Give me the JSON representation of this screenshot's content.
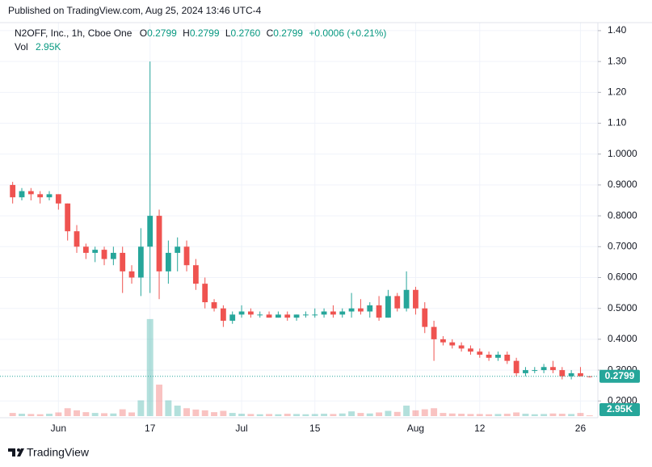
{
  "header": {
    "published": "Published on TradingView.com, Aug 25, 2024 13:46 UTC-4"
  },
  "legend": {
    "symbol": "N2OFF, Inc., 1h, Cboe One",
    "o_key": "O",
    "o": "0.2799",
    "h_key": "H",
    "h": "0.2799",
    "l_key": "L",
    "l": "0.2760",
    "c_key": "C",
    "c": "0.2799",
    "change": "+0.0006 (+0.21%)",
    "vol_key": "Vol",
    "vol": "2.95K"
  },
  "footer": {
    "brand": "TradingView"
  },
  "chart_data": {
    "type": "candlestick",
    "categories": [
      null,
      null,
      null,
      null,
      null,
      "Jun",
      null,
      null,
      null,
      null,
      null,
      null,
      null,
      null,
      null,
      "17",
      null,
      null,
      null,
      null,
      null,
      null,
      null,
      null,
      null,
      "Jul",
      null,
      null,
      null,
      null,
      null,
      null,
      null,
      "15",
      null,
      null,
      null,
      null,
      null,
      null,
      null,
      null,
      null,
      null,
      "Aug",
      null,
      null,
      null,
      null,
      null,
      null,
      "12",
      null,
      null,
      null,
      null,
      null,
      null,
      null,
      null,
      null,
      null,
      "26",
      null
    ],
    "open": [
      0.9,
      0.86,
      0.88,
      0.87,
      0.86,
      0.87,
      0.84,
      0.75,
      0.7,
      0.68,
      0.69,
      0.66,
      0.68,
      0.62,
      0.6,
      0.7,
      0.8,
      0.62,
      0.68,
      0.7,
      0.64,
      0.58,
      0.52,
      0.5,
      0.46,
      0.48,
      0.49,
      0.48,
      0.48,
      0.47,
      0.48,
      0.47,
      0.48,
      0.48,
      0.48,
      0.49,
      0.48,
      0.49,
      0.5,
      0.49,
      0.51,
      0.47,
      0.54,
      0.5,
      0.56,
      0.5,
      0.44,
      0.4,
      0.39,
      0.38,
      0.37,
      0.36,
      0.35,
      0.34,
      0.35,
      0.33,
      0.29,
      0.3,
      0.3,
      0.31,
      0.3,
      0.28,
      0.29,
      0.28
    ],
    "high": [
      0.91,
      0.89,
      0.89,
      0.88,
      0.88,
      0.87,
      0.84,
      0.77,
      0.71,
      0.7,
      0.7,
      0.7,
      0.7,
      0.64,
      0.76,
      1.3,
      0.82,
      0.72,
      0.73,
      0.72,
      0.66,
      0.6,
      0.53,
      0.51,
      0.49,
      0.51,
      0.5,
      0.49,
      0.49,
      0.49,
      0.49,
      0.48,
      0.49,
      0.5,
      0.5,
      0.51,
      0.5,
      0.55,
      0.53,
      0.52,
      0.54,
      0.56,
      0.55,
      0.62,
      0.57,
      0.52,
      0.46,
      0.41,
      0.4,
      0.39,
      0.38,
      0.37,
      0.36,
      0.36,
      0.36,
      0.34,
      0.31,
      0.31,
      0.32,
      0.33,
      0.31,
      0.3,
      0.31,
      0.2799
    ],
    "low": [
      0.84,
      0.85,
      0.85,
      0.84,
      0.85,
      0.82,
      0.72,
      0.68,
      0.66,
      0.65,
      0.64,
      0.64,
      0.55,
      0.58,
      0.54,
      0.55,
      0.53,
      0.58,
      0.62,
      0.62,
      0.56,
      0.5,
      0.49,
      0.44,
      0.45,
      0.47,
      0.47,
      0.47,
      0.47,
      0.47,
      0.46,
      0.46,
      0.47,
      0.47,
      0.47,
      0.47,
      0.47,
      0.47,
      0.48,
      0.47,
      0.46,
      0.47,
      0.49,
      0.49,
      0.48,
      0.42,
      0.33,
      0.38,
      0.37,
      0.36,
      0.35,
      0.34,
      0.33,
      0.33,
      0.32,
      0.28,
      0.28,
      0.29,
      0.29,
      0.29,
      0.27,
      0.27,
      0.28,
      0.276
    ],
    "close": [
      0.86,
      0.88,
      0.87,
      0.86,
      0.87,
      0.84,
      0.75,
      0.7,
      0.68,
      0.69,
      0.66,
      0.68,
      0.62,
      0.6,
      0.7,
      0.8,
      0.62,
      0.68,
      0.7,
      0.64,
      0.58,
      0.52,
      0.5,
      0.46,
      0.48,
      0.49,
      0.48,
      0.48,
      0.47,
      0.48,
      0.47,
      0.48,
      0.48,
      0.48,
      0.49,
      0.48,
      0.49,
      0.5,
      0.49,
      0.51,
      0.47,
      0.54,
      0.5,
      0.56,
      0.5,
      0.44,
      0.4,
      0.39,
      0.38,
      0.37,
      0.36,
      0.35,
      0.34,
      0.35,
      0.33,
      0.29,
      0.3,
      0.3,
      0.31,
      0.3,
      0.28,
      0.29,
      0.28,
      0.2799
    ],
    "volume": [
      12000,
      9000,
      8000,
      7000,
      9000,
      14000,
      30000,
      22000,
      15000,
      12000,
      11000,
      10000,
      26000,
      14000,
      60000,
      370000,
      120000,
      60000,
      40000,
      30000,
      25000,
      22000,
      15000,
      20000,
      12000,
      9000,
      8000,
      7000,
      8000,
      7000,
      9000,
      8000,
      7000,
      8000,
      9000,
      8000,
      10000,
      18000,
      12000,
      10000,
      14000,
      20000,
      16000,
      40000,
      22000,
      26000,
      30000,
      12000,
      10000,
      9000,
      8000,
      8000,
      7000,
      8000,
      9000,
      14000,
      9000,
      7000,
      8000,
      10000,
      9000,
      8000,
      12000,
      2950
    ],
    "volume_label": "2.95K",
    "ylim": [
      0.151,
      1.426
    ],
    "yticks": [
      {
        "value": 1.4,
        "label": "1.40"
      },
      {
        "value": 1.3,
        "label": "1.30"
      },
      {
        "value": 1.2,
        "label": "1.20"
      },
      {
        "value": 1.1,
        "label": "1.10"
      },
      {
        "value": 1.0,
        "label": "1.0000"
      },
      {
        "value": 0.9,
        "label": "0.9000"
      },
      {
        "value": 0.8,
        "label": "0.8000"
      },
      {
        "value": 0.7,
        "label": "0.7000"
      },
      {
        "value": 0.6,
        "label": "0.6000"
      },
      {
        "value": 0.5,
        "label": "0.5000"
      },
      {
        "value": 0.4,
        "label": "0.4000"
      },
      {
        "value": 0.3,
        "label": "0.3000"
      },
      {
        "value": 0.2,
        "label": "0.2000"
      }
    ],
    "y2lim": [
      0,
      1500000
    ],
    "up_color": "#26a69a",
    "down_color": "#ef5350",
    "grid": true
  }
}
